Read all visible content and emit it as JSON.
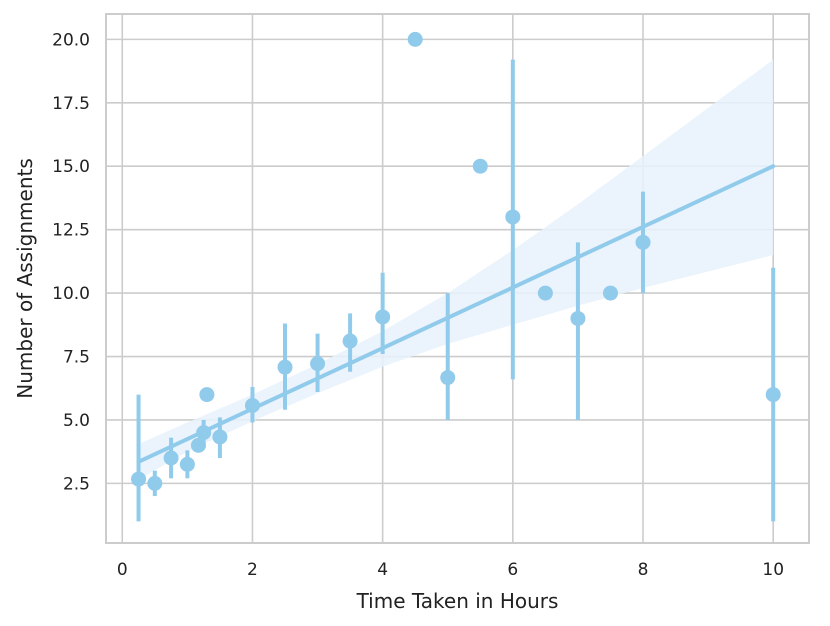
{
  "chart_data": {
    "type": "scatter",
    "xlabel": "Time Taken in Hours",
    "ylabel": "Number of Assignments",
    "xlim": [
      -0.25,
      10.55
    ],
    "ylim": [
      0.15,
      21.0
    ],
    "xticks": [
      0,
      2,
      4,
      6,
      8,
      10
    ],
    "xtick_labels": [
      "0",
      "2",
      "4",
      "6",
      "8",
      "10"
    ],
    "yticks": [
      2.5,
      5.0,
      7.5,
      10.0,
      12.5,
      15.0,
      17.5,
      20.0
    ],
    "ytick_labels": [
      "2.5",
      "5.0",
      "7.5",
      "10.0",
      "12.5",
      "15.0",
      "17.5",
      "20.0"
    ],
    "grid": true,
    "legend": "none",
    "colors": {
      "point": "#91cbeb",
      "line": "#91cbeb",
      "band": "#e8f2fb",
      "grid": "#cccccc",
      "frame": "#cccccc"
    },
    "points": [
      {
        "x": 0.25,
        "y": 2.67,
        "err_low": 1.0,
        "err_high": 6.0
      },
      {
        "x": 0.5,
        "y": 2.5,
        "err_low": 2.0,
        "err_high": 3.0
      },
      {
        "x": 0.75,
        "y": 3.5,
        "err_low": 2.7,
        "err_high": 4.3
      },
      {
        "x": 1.0,
        "y": 3.25,
        "err_low": 2.7,
        "err_high": 3.8
      },
      {
        "x": 1.17,
        "y": 4.0,
        "err_low": null,
        "err_high": null
      },
      {
        "x": 1.25,
        "y": 4.5,
        "err_low": 3.9,
        "err_high": 5.0
      },
      {
        "x": 1.3,
        "y": 6.0,
        "err_low": null,
        "err_high": null
      },
      {
        "x": 1.5,
        "y": 4.33,
        "err_low": 3.5,
        "err_high": 5.1
      },
      {
        "x": 2.0,
        "y": 5.57,
        "err_low": 4.9,
        "err_high": 6.3
      },
      {
        "x": 2.5,
        "y": 7.08,
        "err_low": 5.4,
        "err_high": 8.8
      },
      {
        "x": 3.0,
        "y": 7.22,
        "err_low": 6.1,
        "err_high": 8.4
      },
      {
        "x": 3.5,
        "y": 8.11,
        "err_low": 6.9,
        "err_high": 9.2
      },
      {
        "x": 4.0,
        "y": 9.06,
        "err_low": 7.6,
        "err_high": 10.8
      },
      {
        "x": 4.5,
        "y": 20.0,
        "err_low": null,
        "err_high": null
      },
      {
        "x": 5.0,
        "y": 6.67,
        "err_low": 5.0,
        "err_high": 10.0
      },
      {
        "x": 5.5,
        "y": 15.0,
        "err_low": null,
        "err_high": null
      },
      {
        "x": 6.0,
        "y": 13.0,
        "err_low": 6.6,
        "err_high": 19.2
      },
      {
        "x": 6.5,
        "y": 10.0,
        "err_low": null,
        "err_high": null
      },
      {
        "x": 7.0,
        "y": 9.0,
        "err_low": 5.0,
        "err_high": 12.0
      },
      {
        "x": 7.5,
        "y": 10.0,
        "err_low": null,
        "err_high": null
      },
      {
        "x": 8.0,
        "y": 12.0,
        "err_low": 10.0,
        "err_high": 14.0
      },
      {
        "x": 10.0,
        "y": 6.0,
        "err_low": 1.0,
        "err_high": 11.0
      }
    ],
    "regression": {
      "x": [
        0.25,
        10.0
      ],
      "y": [
        3.35,
        15.0
      ],
      "ci_x": [
        0.25,
        1.0,
        2.0,
        3.0,
        4.0,
        5.0,
        6.0,
        7.0,
        8.0,
        9.0,
        10.0
      ],
      "ci_low": [
        2.65,
        3.75,
        4.95,
        6.05,
        7.1,
        8.0,
        8.75,
        9.5,
        10.2,
        10.85,
        11.5
      ],
      "ci_high": [
        4.05,
        4.9,
        6.0,
        7.2,
        8.5,
        10.0,
        11.7,
        13.5,
        15.4,
        17.3,
        19.2
      ]
    }
  }
}
